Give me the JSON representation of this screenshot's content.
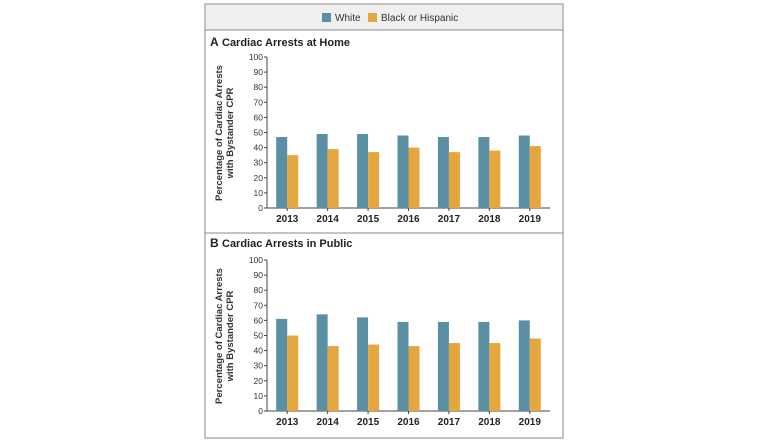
{
  "colors": {
    "white": "#5b8fa3",
    "black_or_hispanic": "#e5a73d",
    "frame": "#8a8a8a",
    "header_bg": "#efefef",
    "axis": "#444444"
  },
  "legend": [
    "White",
    "Black or Hispanic"
  ],
  "chart_data": [
    {
      "type": "bar",
      "panel": "A",
      "title": "Cardiac Arrests at Home",
      "ylabel_line1": "Percentage of Cardiac Arrests",
      "ylabel_line2": "with Bystander CPR",
      "xlabel": "",
      "ylim": [
        0,
        100
      ],
      "yticks": [
        0,
        10,
        20,
        30,
        40,
        50,
        60,
        70,
        80,
        90,
        100
      ],
      "categories": [
        "2013",
        "2014",
        "2015",
        "2016",
        "2017",
        "2018",
        "2019"
      ],
      "series": [
        {
          "name": "White",
          "values": [
            47,
            49,
            49,
            48,
            47,
            47,
            48
          ]
        },
        {
          "name": "Black or Hispanic",
          "values": [
            35,
            39,
            37,
            40,
            37,
            38,
            41
          ]
        }
      ]
    },
    {
      "type": "bar",
      "panel": "B",
      "title": "Cardiac Arrests in Public",
      "ylabel_line1": "Percentage of Cardiac Arrests",
      "ylabel_line2": "with Bystander CPR",
      "xlabel": "",
      "ylim": [
        0,
        100
      ],
      "yticks": [
        0,
        10,
        20,
        30,
        40,
        50,
        60,
        70,
        80,
        90,
        100
      ],
      "categories": [
        "2013",
        "2014",
        "2015",
        "2016",
        "2017",
        "2018",
        "2019"
      ],
      "series": [
        {
          "name": "White",
          "values": [
            61,
            64,
            62,
            59,
            59,
            59,
            60
          ]
        },
        {
          "name": "Black or Hispanic",
          "values": [
            50,
            43,
            44,
            43,
            45,
            45,
            48
          ]
        }
      ]
    }
  ]
}
